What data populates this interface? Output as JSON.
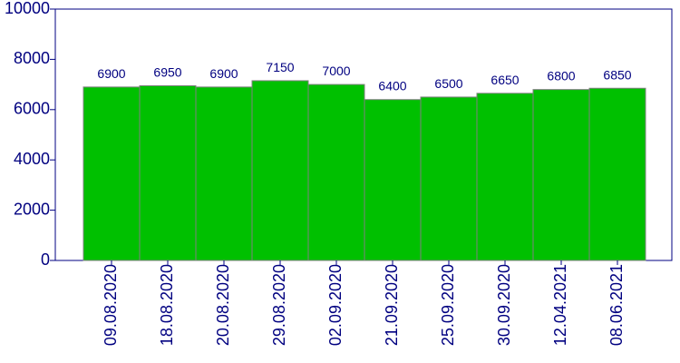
{
  "chart_data": {
    "type": "bar",
    "categories": [
      "09.08.2020",
      "18.08.2020",
      "20.08.2020",
      "29.08.2020",
      "02.09.2020",
      "21.09.2020",
      "25.09.2020",
      "30.09.2020",
      "12.04.2021",
      "08.06.2021"
    ],
    "values": [
      6900,
      6950,
      6900,
      7150,
      7000,
      6400,
      6500,
      6650,
      6800,
      6850
    ],
    "color": "#00c000",
    "ylim": [
      0,
      10000
    ],
    "yticks": [
      0,
      2000,
      4000,
      6000,
      8000,
      10000
    ]
  }
}
